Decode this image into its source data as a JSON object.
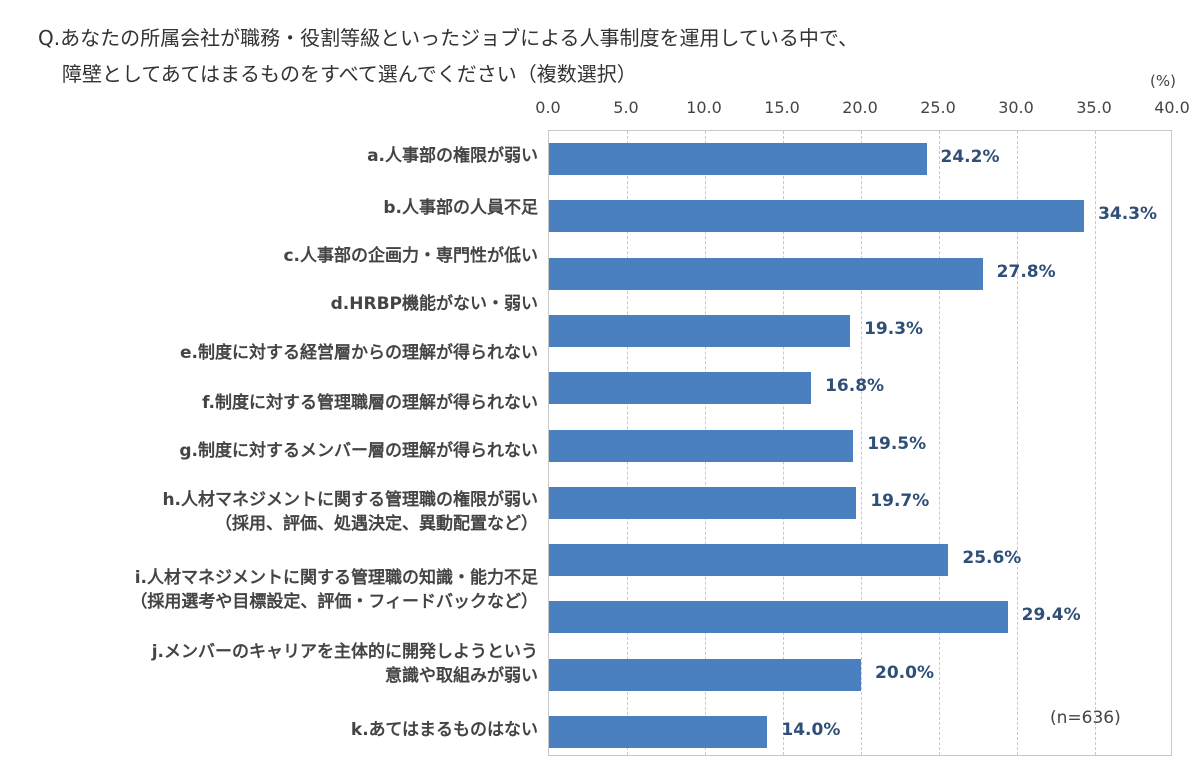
{
  "question": {
    "line1": "Q.あなたの所属会社が職務・役割等級といったジョブによる人事制度を運用している中で、",
    "line2": "障壁としてあてはまるものをすべて選んでください（複数選択）"
  },
  "unit_label": "(%)",
  "sample_note": "(n=636)",
  "chart_data": {
    "type": "bar",
    "orientation": "horizontal",
    "xlim": [
      0,
      40
    ],
    "ticks": [
      "0.0",
      "5.0",
      "10.0",
      "15.0",
      "20.0",
      "25.0",
      "30.0",
      "35.0",
      "40.0"
    ],
    "bar_color": "#4a80bf",
    "grid": true,
    "categories": [
      {
        "line1": "a.人事部の権限が弱い",
        "line2": "",
        "value": 24.2,
        "label": "24.2%"
      },
      {
        "line1": "b.人事部の人員不足",
        "line2": "",
        "value": 34.3,
        "label": "34.3%"
      },
      {
        "line1": "c.人事部の企画力・専門性が低い",
        "line2": "",
        "value": 27.8,
        "label": "27.8%"
      },
      {
        "line1": "d.HRBP機能がない・弱い",
        "line2": "",
        "value": 19.3,
        "label": "19.3%"
      },
      {
        "line1": "e.制度に対する経営層からの理解が得られない",
        "line2": "",
        "value": 16.8,
        "label": "16.8%"
      },
      {
        "line1": "f.制度に対する管理職層の理解が得られない",
        "line2": "",
        "value": 19.5,
        "label": "19.5%"
      },
      {
        "line1": "g.制度に対するメンバー層の理解が得られない",
        "line2": "",
        "value": 19.7,
        "label": "19.7%"
      },
      {
        "line1": "h.人材マネジメントに関する管理職の権限が弱い",
        "line2": "（採用、評価、処遇決定、異動配置など）",
        "value": 25.6,
        "label": "25.6%"
      },
      {
        "line1": "i.人材マネジメントに関する管理職の知識・能力不足",
        "line2": "（採用選考や目標設定、評価・フィードバックなど）",
        "value": 29.4,
        "label": "29.4%"
      },
      {
        "line1": "j.メンバーのキャリアを主体的に開発しようという",
        "line2": "意識や取組みが弱い",
        "value": 20.0,
        "label": "20.0%"
      },
      {
        "line1": "k.あてはまるものはない",
        "line2": "",
        "value": 14.0,
        "label": "14.0%"
      }
    ]
  }
}
